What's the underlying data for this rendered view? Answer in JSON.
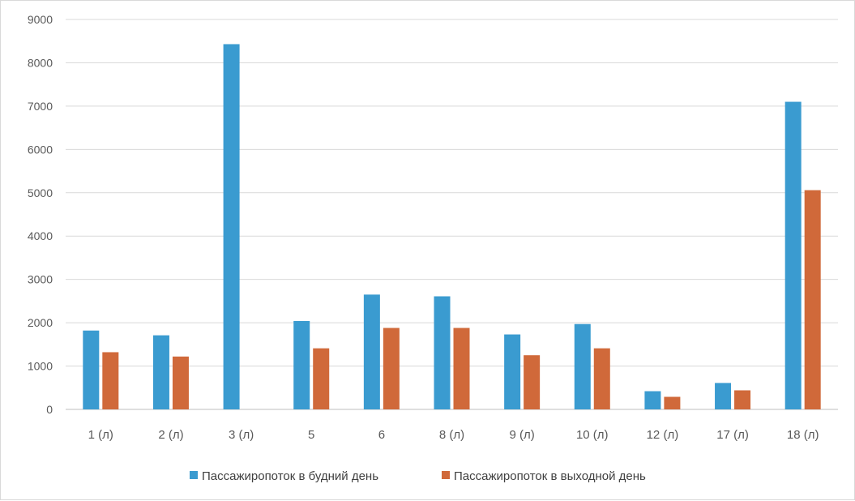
{
  "chart_data": {
    "type": "bar",
    "title": "",
    "xlabel": "",
    "ylabel": "",
    "ylim": [
      0,
      9000
    ],
    "yticks": [
      0,
      1000,
      2000,
      3000,
      4000,
      5000,
      6000,
      7000,
      8000,
      9000
    ],
    "grid": true,
    "legend_position": "bottom",
    "categories": [
      "1 (л)",
      "2 (л)",
      "3 (л)",
      "5",
      "6",
      "8 (л)",
      "9 (л)",
      "10 (л)",
      "12 (л)",
      "17 (л)",
      "18 (л)"
    ],
    "series": [
      {
        "name": "Пассажиропоток в будний день",
        "color": "#3a9bd0",
        "values": [
          1820,
          1710,
          8430,
          2040,
          2650,
          2610,
          1730,
          1970,
          420,
          610,
          7100
        ]
      },
      {
        "name": "Пассажиропоток в выходной день",
        "color": "#d0693a",
        "values": [
          1320,
          1220,
          0,
          1410,
          1880,
          1880,
          1250,
          1410,
          290,
          440,
          5060
        ]
      }
    ]
  }
}
